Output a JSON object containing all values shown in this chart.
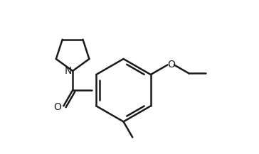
{
  "background_color": "#ffffff",
  "line_color": "#1a1a1a",
  "line_width": 1.8,
  "text_color": "#1a1a1a",
  "label_N": "N",
  "label_O_carbonyl": "O",
  "label_O_ethoxy": "O",
  "fig_width": 3.64,
  "fig_height": 2.17,
  "dpi": 100
}
